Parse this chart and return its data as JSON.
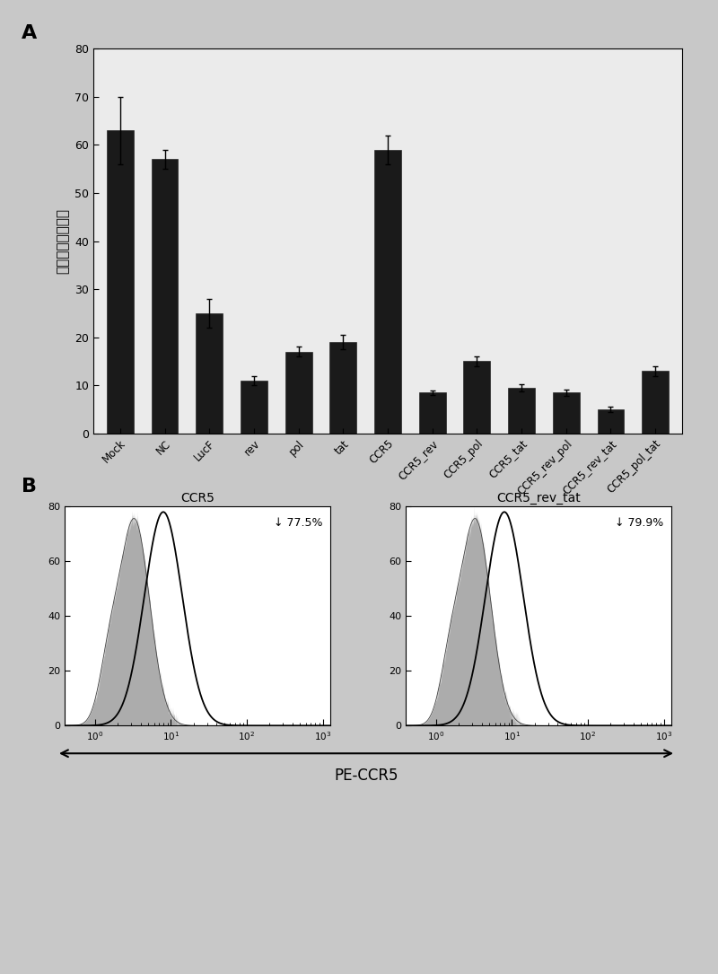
{
  "panel_A": {
    "categories": [
      "Mock",
      "NC",
      "LucF",
      "rev",
      "pol",
      "tat",
      "CCR5",
      "CCR5_rev",
      "CCR5_pol",
      "CCR5_tat",
      "CCR5_rev_pol",
      "CCR5_rev_tat",
      "CCR5_pol_tat"
    ],
    "values": [
      63,
      57,
      25,
      11,
      17,
      19,
      59,
      8.5,
      15,
      9.5,
      8.5,
      5,
      13
    ],
    "errors": [
      7,
      2,
      3,
      1,
      1,
      1.5,
      3,
      0.5,
      1,
      0.8,
      0.7,
      0.5,
      1
    ],
    "ylabel": "相对荧光素酶活性",
    "ylim": [
      0,
      80
    ],
    "yticks": [
      0,
      10,
      20,
      30,
      40,
      50,
      60,
      70,
      80
    ],
    "bar_color": "#1a1a1a",
    "bar_width": 0.6
  },
  "panel_B": {
    "left_title": "CCR5",
    "right_title": "CCR5_rev_tat",
    "left_annotation": "↓ 77.5%",
    "right_annotation": "↓ 79.9%",
    "xlabel": "PE-CCR5",
    "ylim": [
      0,
      80
    ],
    "yticks": [
      0,
      20,
      40,
      60,
      80
    ],
    "fill_color": "#888888",
    "line_color": "#000000",
    "bg_color": "#ffffff"
  },
  "label_A": "A",
  "label_B": "B",
  "panel_A_bg": "#ebebeb",
  "figure_bg": "#c8c8c8"
}
